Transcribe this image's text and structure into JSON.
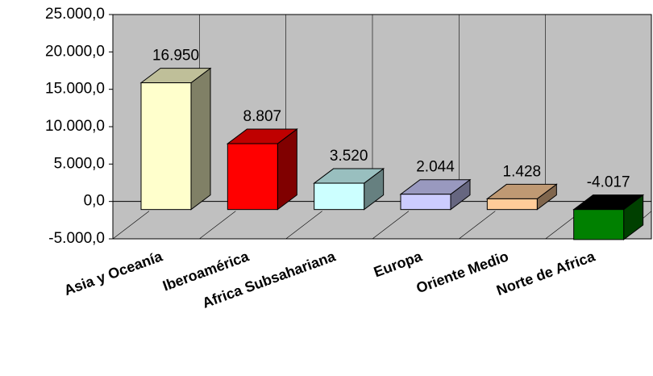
{
  "chart_data": {
    "type": "bar3d",
    "categories": [
      "Asia y Oceanía",
      "Iberoamérica",
      "Africa Subsahariana",
      "Europa",
      "Oriente Medio",
      "Norte de Africa"
    ],
    "values": [
      16950,
      8807,
      3520,
      2044,
      1428,
      -4017
    ],
    "value_labels": [
      "16.950",
      "8.807",
      "3.520",
      "2.044",
      "1.428",
      "-4.017"
    ],
    "colors": [
      "#ffffcc",
      "#ff0000",
      "#ccffff",
      "#ccccff",
      "#ffcc99",
      "#008000"
    ],
    "ylim": [
      -5000,
      25000
    ],
    "yticks": [
      {
        "value": -5000,
        "label": "-5.000,0"
      },
      {
        "value": 0,
        "label": "0,0"
      },
      {
        "value": 5000,
        "label": "5.000,0"
      },
      {
        "value": 10000,
        "label": "10.000,0"
      },
      {
        "value": 15000,
        "label": "15.000,0"
      },
      {
        "value": 20000,
        "label": "20.000,0"
      },
      {
        "value": 25000,
        "label": "25.000,0"
      }
    ],
    "grid": true
  }
}
